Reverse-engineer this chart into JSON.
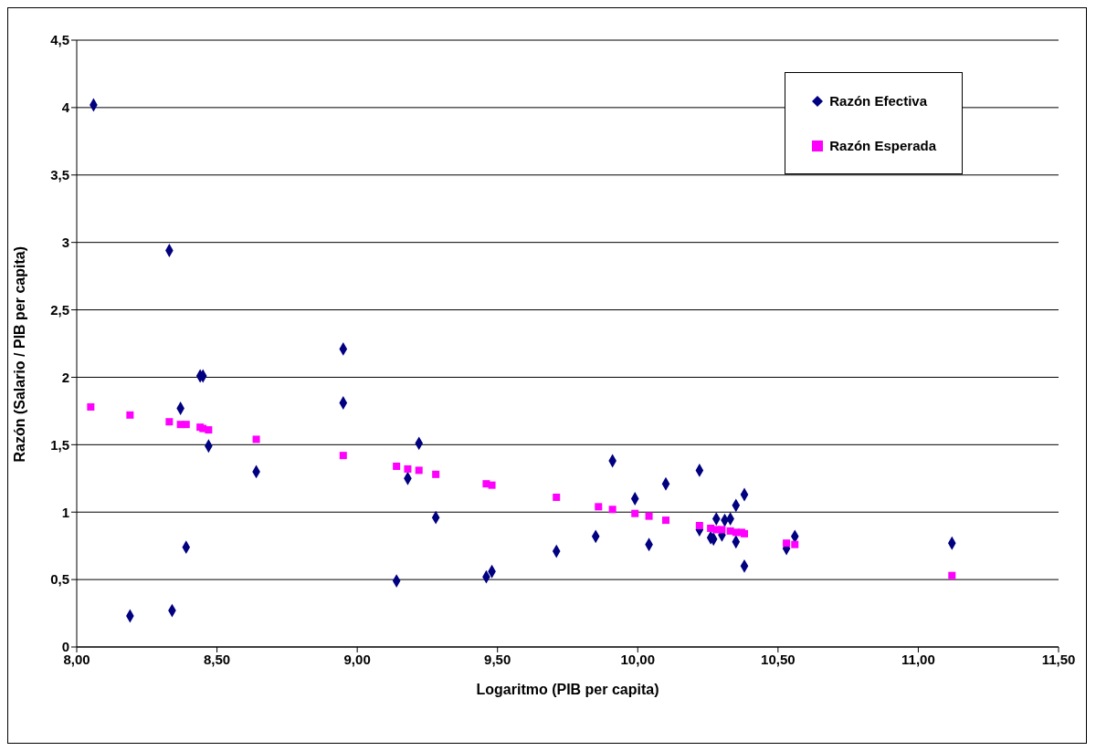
{
  "chart_data": {
    "type": "scatter",
    "xlabel": "Logaritmo (PIB per capita)",
    "ylabel": "Razón (Salario / PIB per capita)",
    "xlim": [
      8,
      11.5
    ],
    "ylim": [
      0,
      4.5
    ],
    "xticks": [
      {
        "value": 8,
        "label": "8,00"
      },
      {
        "value": 8.5,
        "label": "8,50"
      },
      {
        "value": 9,
        "label": "9,00"
      },
      {
        "value": 9.5,
        "label": "9,50"
      },
      {
        "value": 10,
        "label": "10,00"
      },
      {
        "value": 10.5,
        "label": "10,50"
      },
      {
        "value": 11,
        "label": "11,00"
      },
      {
        "value": 11.5,
        "label": "11,50"
      }
    ],
    "yticks": [
      0,
      {
        "value": 0.5,
        "label": "0,5"
      },
      1,
      {
        "value": 1.5,
        "label": "1,5"
      },
      2,
      {
        "value": 2.5,
        "label": "2,5"
      },
      3,
      {
        "value": 3.5,
        "label": "3,5"
      },
      4,
      {
        "value": 4.5,
        "label": "4,5"
      }
    ],
    "grid": "y",
    "legend": "top right",
    "series": [
      {
        "name": "Razón Efectiva",
        "color": "#000080",
        "marker": "diamond",
        "x": [
          8.06,
          8.19,
          8.33,
          8.34,
          8.37,
          8.39,
          8.44,
          8.45,
          8.47,
          8.64,
          8.95,
          8.95,
          9.14,
          9.18,
          9.22,
          9.28,
          9.46,
          9.48,
          9.71,
          9.85,
          9.86,
          9.91,
          9.99,
          10.04,
          10.1,
          10.22,
          10.22,
          10.26,
          10.27,
          10.28,
          10.3,
          10.31,
          10.33,
          10.35,
          10.35,
          10.38,
          10.38,
          10.53,
          10.56,
          11.12
        ],
        "values": [
          4.02,
          0.23,
          2.94,
          0.27,
          1.77,
          0.74,
          2.01,
          2.01,
          1.49,
          1.3,
          2.21,
          1.81,
          0.49,
          1.25,
          1.51,
          0.96,
          0.52,
          0.56,
          0.71,
          0.82,
          null,
          1.38,
          1.1,
          0.76,
          1.21,
          1.31,
          0.87,
          0.81,
          0.8,
          0.95,
          0.83,
          0.94,
          0.95,
          0.78,
          1.05,
          1.13,
          0.6,
          0.73,
          0.82,
          0.77
        ]
      },
      {
        "name": "Razón Esperada",
        "color": "#ff00ff",
        "marker": "square",
        "x": [
          8.05,
          8.19,
          8.33,
          8.37,
          8.39,
          8.44,
          8.45,
          8.47,
          8.64,
          8.95,
          9.14,
          9.18,
          9.22,
          9.28,
          9.46,
          9.48,
          9.71,
          9.86,
          9.91,
          9.99,
          10.04,
          10.1,
          10.22,
          10.26,
          10.28,
          10.3,
          10.32,
          10.33,
          10.35,
          10.37,
          10.38,
          10.53,
          10.56,
          11.12
        ],
        "values": [
          1.78,
          1.72,
          1.67,
          1.65,
          1.65,
          1.63,
          1.62,
          1.61,
          1.54,
          1.42,
          1.34,
          1.32,
          1.31,
          1.28,
          1.21,
          1.2,
          1.11,
          1.04,
          1.02,
          0.99,
          0.97,
          0.94,
          0.9,
          0.88,
          0.87,
          0.87,
          null,
          0.86,
          0.85,
          0.85,
          0.84,
          0.77,
          0.76,
          0.53
        ]
      }
    ]
  }
}
